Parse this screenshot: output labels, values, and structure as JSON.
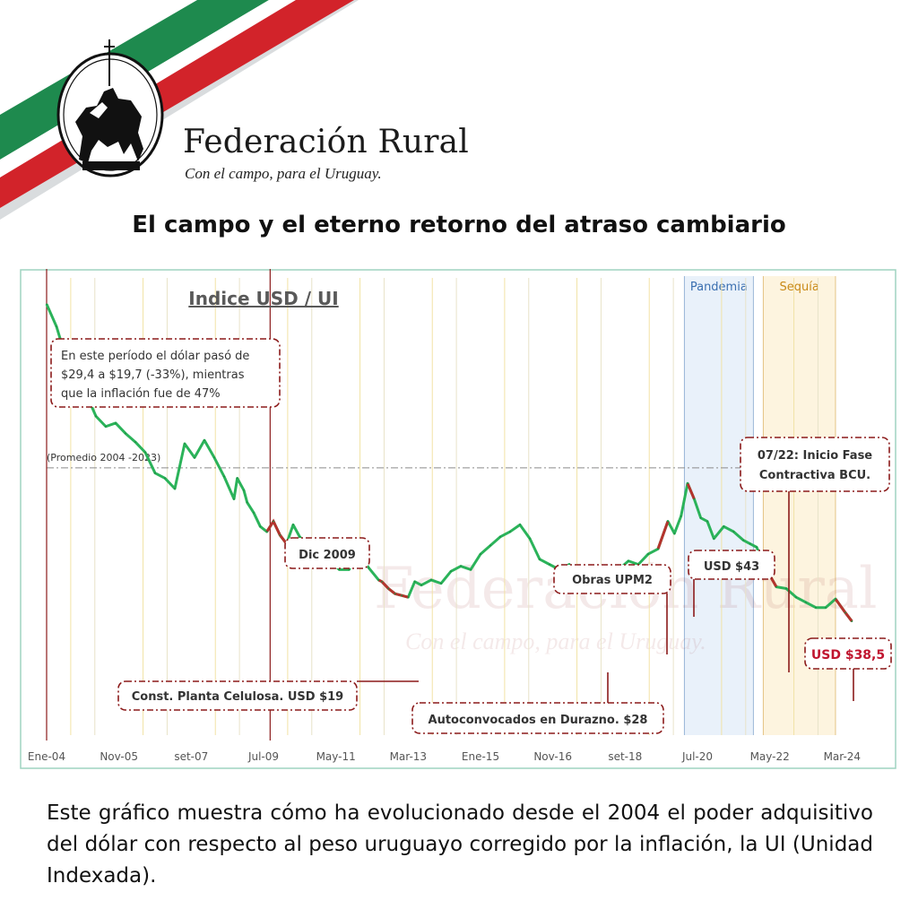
{
  "brand": {
    "name": "Federación Rural",
    "tagline": "Con el campo, para el Uruguay.",
    "watermark": "Federación Rural",
    "watermark_tagline": "Con el campo, para el Uruguay.",
    "colors": {
      "green": "#1e8a4e",
      "red": "#d2232a",
      "gray": "#9aa0a6"
    },
    "logo_icon": "equestrian-statue-seal"
  },
  "headline": "El campo y el eterno retorno del atraso cambiario",
  "caption": "Este gráfico muestra cómo ha evolucionado desde el 2004 el poder adquisitivo del dólar con respecto al peso uruguayo corregido por la inflación, la UI (Unidad Indexada).",
  "chart_data": {
    "type": "line",
    "title": "Indice USD / UI",
    "xlabel": "",
    "ylabel": "",
    "x_ticks": [
      "Ene-04",
      "Nov-05",
      "set-07",
      "Jul-09",
      "May-11",
      "Mar-13",
      "Ene-15",
      "Nov-16",
      "set-18",
      "Jul-20",
      "May-22",
      "Mar-24"
    ],
    "x_tick_months": [
      0,
      22,
      44,
      66,
      88,
      110,
      132,
      154,
      176,
      198,
      220,
      242
    ],
    "x_range_months": [
      0,
      246
    ],
    "ylim": [
      10,
      36
    ],
    "grid": "vertical",
    "reference_line": {
      "label": "(Promedio 2004 -2023)",
      "value": 25.5
    },
    "periods": [
      {
        "label": "Pandemia",
        "start_month": 194,
        "end_month": 215,
        "color": "#cfe0f3"
      },
      {
        "label": "Sequía",
        "start_month": 218,
        "end_month": 240,
        "color": "#fbe7b8"
      }
    ],
    "series": [
      {
        "color": "#2bb35a",
        "x_month": [
          0,
          3,
          6,
          9,
          12,
          15,
          18,
          21,
          24,
          27,
          30,
          33,
          36,
          39,
          42,
          45,
          48,
          51,
          54,
          57,
          58,
          60,
          61,
          63,
          65,
          67,
          69,
          71,
          73,
          75,
          77,
          80,
          83,
          86,
          89,
          92,
          95,
          98,
          101,
          102,
          104,
          106,
          108,
          110,
          112,
          114,
          117,
          120,
          123,
          126,
          129,
          132,
          135,
          138,
          141,
          144,
          147,
          150,
          153,
          156,
          159,
          162,
          165,
          168,
          171,
          174,
          177,
          180,
          183,
          186,
          189,
          191,
          193,
          195,
          197,
          199,
          201,
          203,
          206,
          209,
          212,
          214,
          216,
          219,
          222,
          225,
          228,
          231,
          234,
          237,
          240,
          243,
          245
        ],
        "values": [
          35,
          33.7,
          31.8,
          30.1,
          29.8,
          28.5,
          27.9,
          28.1,
          27.5,
          27.0,
          26.4,
          25.2,
          24.9,
          24.3,
          26.9,
          26.1,
          27.1,
          26.1,
          25.0,
          23.7,
          24.9,
          24.2,
          23.5,
          22.9,
          22.1,
          21.8,
          22.4,
          21.6,
          21.1,
          22.2,
          21.5,
          20.9,
          20.4,
          20.2,
          19.6,
          19.6,
          20.6,
          19.7,
          19.0,
          18.9,
          18.5,
          18.2,
          18.1,
          18.0,
          18.9,
          18.7,
          19.0,
          18.8,
          19.5,
          19.8,
          19.6,
          20.5,
          21.0,
          21.5,
          21.8,
          22.2,
          21.4,
          20.2,
          19.9,
          19.6,
          19.9,
          18.8,
          19.0,
          19.0,
          19.5,
          19.6,
          20.1,
          19.9,
          20.5,
          20.8,
          22.4,
          21.7,
          22.7,
          24.6,
          23.7,
          22.6,
          22.4,
          21.4,
          22.1,
          21.8,
          21.3,
          21.1,
          20.9,
          19.6,
          18.6,
          18.5,
          18.0,
          17.7,
          17.4,
          17.4,
          17.9,
          17.1,
          16.6
        ],
        "highlights": [
          {
            "start_month": 66,
            "end_month": 73,
            "color": "#b5332d"
          },
          {
            "start_month": 101,
            "end_month": 110,
            "color": "#b5332d"
          },
          {
            "start_month": 165,
            "end_month": 168,
            "color": "#b5332d"
          },
          {
            "start_month": 186,
            "end_month": 189,
            "color": "#b5332d"
          },
          {
            "start_month": 195,
            "end_month": 197,
            "color": "#b5332d"
          },
          {
            "start_month": 219,
            "end_month": 222,
            "color": "#b5332d"
          },
          {
            "start_month": 240,
            "end_month": 245,
            "color": "#b5332d"
          }
        ]
      }
    ],
    "event_lines": [
      {
        "month": 0,
        "color": "#8b1a1a"
      },
      {
        "month": 68,
        "color": "#8b1a1a"
      }
    ],
    "annotations": [
      {
        "id": "intro",
        "lines": [
          "En este período el dólar pasó de",
          "$29,4 a $19,7 (-33%), mientras",
          "que la inflación fue de 47%"
        ]
      },
      {
        "id": "dic2009",
        "text": "Dic 2009"
      },
      {
        "id": "celulosa",
        "text": "Const. Planta Celulosa. USD $19"
      },
      {
        "id": "durazno",
        "text": "Autoconvocados en Durazno. $28"
      },
      {
        "id": "upm2",
        "text": "Obras UPM2"
      },
      {
        "id": "usd43",
        "text": "USD $43"
      },
      {
        "id": "bcu",
        "lines": [
          "07/22: Inicio Fase",
          "Contractiva BCU."
        ]
      },
      {
        "id": "usd385",
        "text": "USD $38,5"
      }
    ]
  }
}
